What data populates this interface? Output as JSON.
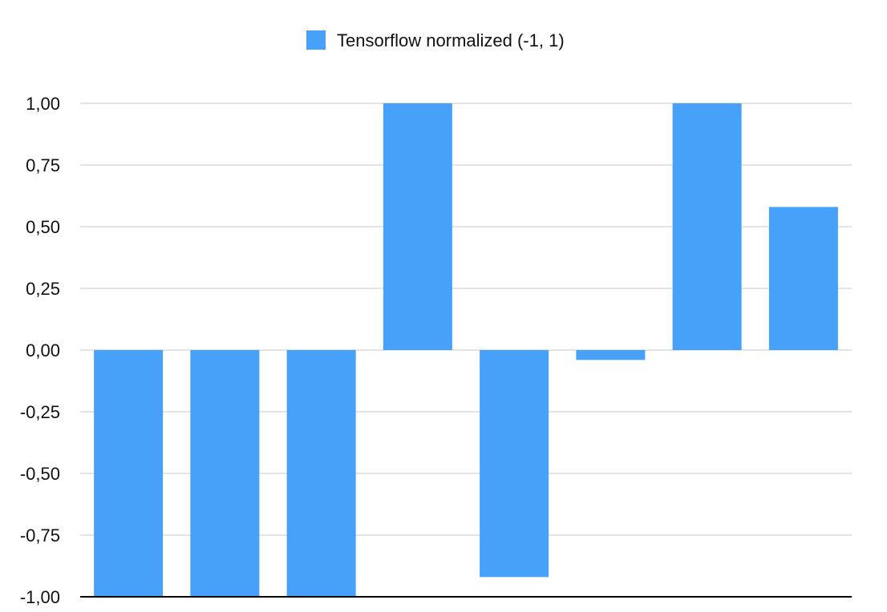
{
  "chart_data": {
    "type": "bar",
    "title": "",
    "xlabel": "",
    "ylabel": "",
    "categories": [
      "",
      "",
      "",
      "",
      "",
      "",
      "",
      ""
    ],
    "series": [
      {
        "name": "Tensorflow normalized (-1, 1)",
        "color": "#47A1F8",
        "values": [
          -1.0,
          -1.0,
          -1.0,
          1.0,
          -0.92,
          -0.04,
          1.0,
          0.58
        ]
      }
    ],
    "ylim": [
      -1.0,
      1.0
    ],
    "yticks": [
      1.0,
      0.75,
      0.5,
      0.25,
      0.0,
      -0.25,
      -0.5,
      -0.75,
      -1.0
    ],
    "ytick_labels": [
      "1,00",
      "0,75",
      "0,50",
      "0,25",
      "0,00",
      "-0,25",
      "-0,50",
      "-0,75",
      "-1,00"
    ],
    "grid": true,
    "legend_position": "top-center"
  },
  "colors": {
    "gridline": "#c8c8c8",
    "baseline": "#000000",
    "bar": "#47A1F8"
  }
}
